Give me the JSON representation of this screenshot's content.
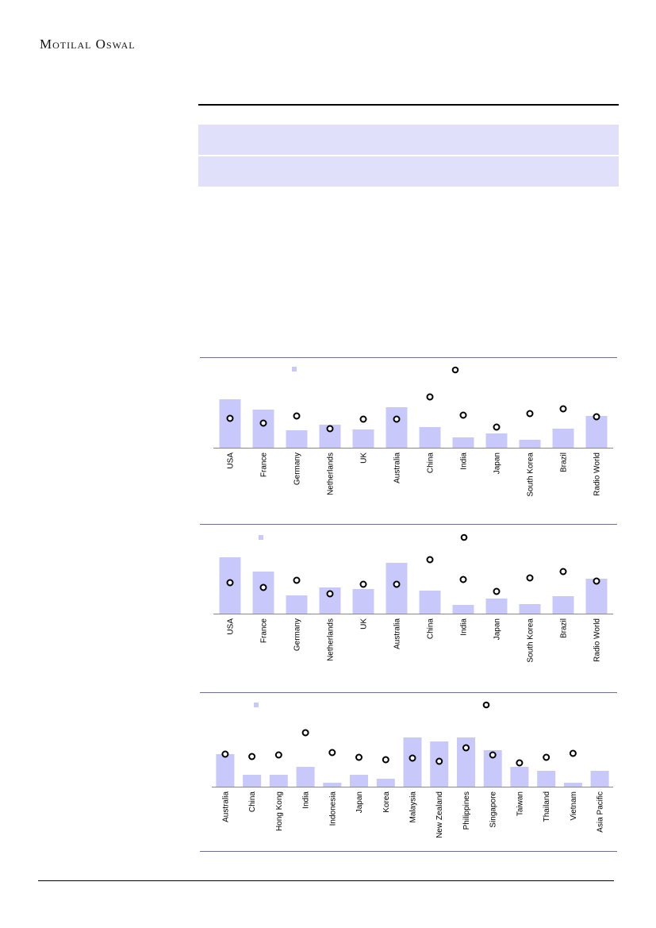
{
  "header": {
    "brand": "Motilal Oswal"
  },
  "colors": {
    "bar": "#c8c8fb",
    "marker_stroke": "#000000",
    "band": "#e0e0fb",
    "rule": "#6d6d9b"
  },
  "chart_data": [
    {
      "type": "bar",
      "categories": [
        "USA",
        "France",
        "Germany",
        "Netherlands",
        "UK",
        "Australia",
        "China",
        "India",
        "Japan",
        "South Korea",
        "Brazil",
        "Radio World"
      ],
      "series": [
        {
          "kind": "bar",
          "values": [
            6.1,
            4.8,
            2.2,
            2.9,
            2.3,
            5.1,
            2.6,
            1.3,
            1.8,
            1.0,
            2.4,
            4.0
          ]
        },
        {
          "kind": "scatter",
          "values": [
            3.7,
            3.1,
            4.0,
            2.4,
            3.6,
            3.6,
            6.4,
            4.1,
            2.6,
            4.3,
            4.9,
            3.9
          ]
        }
      ],
      "ylim": [
        0,
        10
      ],
      "legend": "top"
    },
    {
      "type": "bar",
      "categories": [
        "USA",
        "France",
        "Germany",
        "Netherlands",
        "UK",
        "Australia",
        "China",
        "India",
        "Japan",
        "South Korea",
        "Brazil",
        "Radio World"
      ],
      "series": [
        {
          "kind": "bar",
          "values": [
            7.1,
            5.3,
            2.3,
            3.3,
            3.1,
            6.4,
            2.9,
            1.1,
            1.9,
            1.2,
            2.2,
            4.4
          ]
        },
        {
          "kind": "scatter",
          "values": [
            3.9,
            3.3,
            4.2,
            2.5,
            3.7,
            3.7,
            6.8,
            4.3,
            2.8,
            4.5,
            5.3,
            4.1
          ]
        }
      ],
      "ylim": [
        0,
        10
      ],
      "legend": "top"
    },
    {
      "type": "bar",
      "categories": [
        "Australia",
        "China",
        "Hong Kong",
        "India",
        "Indonesia",
        "Japan",
        "Korea",
        "Malaysia",
        "New Zealand",
        "Philippines",
        "Singapore",
        "Taiwan",
        "Thailand",
        "Vietnam",
        "Asia Pacific"
      ],
      "series": [
        {
          "kind": "bar",
          "values": [
            4.1,
            1.5,
            1.5,
            2.5,
            0.5,
            1.5,
            1.0,
            6.2,
            5.7,
            6.2,
            4.6,
            2.5,
            2.0,
            0.5,
            2.0
          ]
        },
        {
          "kind": "scatter",
          "values": [
            4.1,
            3.8,
            4.0,
            6.8,
            4.3,
            3.7,
            3.4,
            3.6,
            3.2,
            4.9,
            4.0,
            3.0,
            3.7,
            4.2,
            null
          ]
        }
      ],
      "ylim": [
        0,
        10
      ],
      "legend": "top"
    }
  ]
}
